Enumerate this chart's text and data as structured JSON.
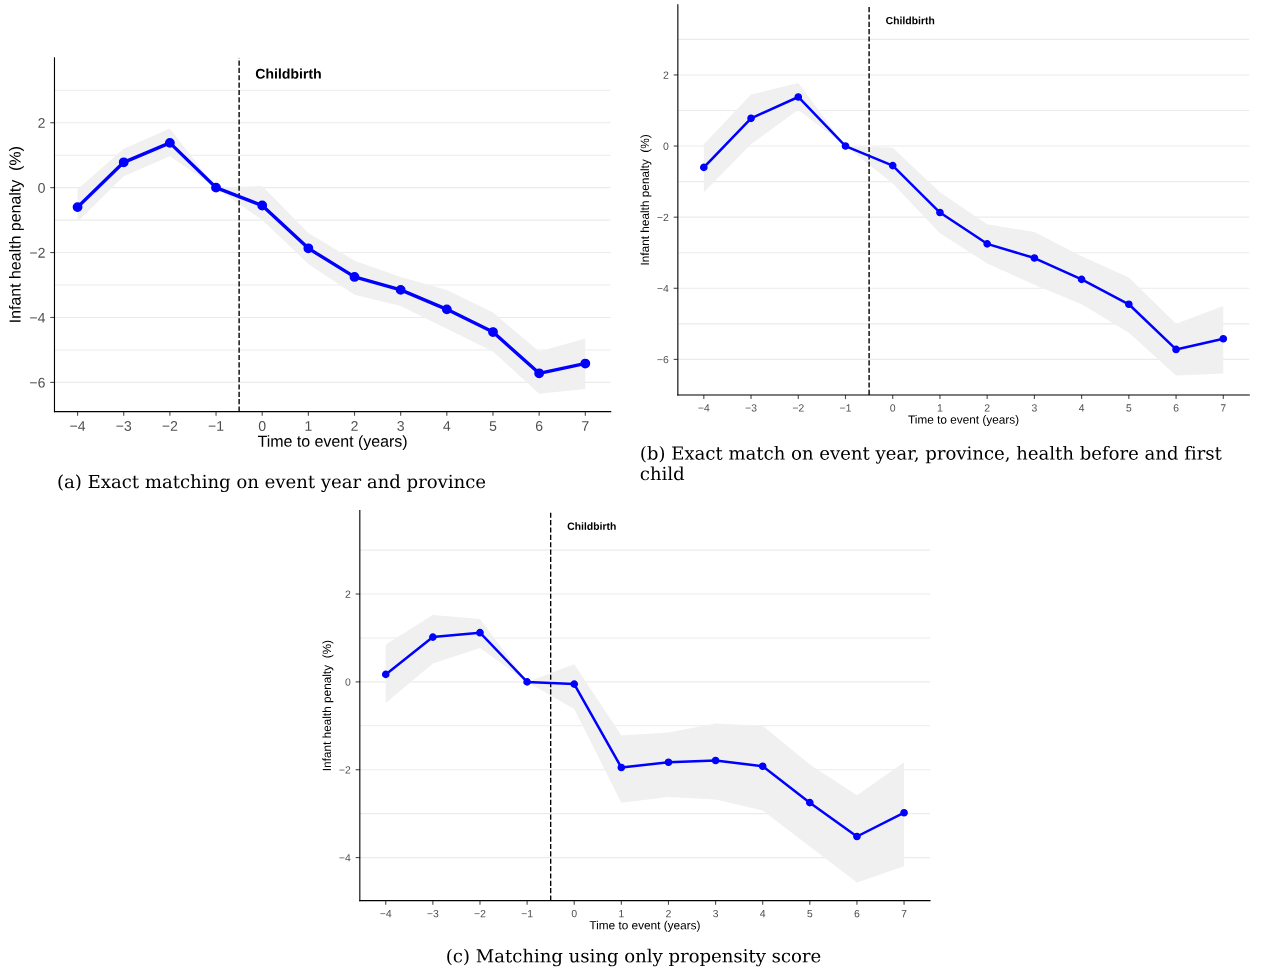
{
  "chart_data": [
    {
      "type": "line",
      "xlabel": "Time to event (years)",
      "ylabel": "Infant health penalty  (%)",
      "x": [
        -4,
        -3,
        -2,
        -1,
        0,
        1,
        2,
        3,
        4,
        5,
        6,
        7
      ],
      "series": [
        {
          "color": "#0000ff",
          "values": [
            -0.6,
            0.78,
            1.38,
            0,
            -0.55,
            -1.87,
            -2.75,
            -3.15,
            -3.75,
            -4.45,
            -5.72,
            -5.42
          ],
          "lower": [
            -1.05,
            0.35,
            0.97,
            0,
            -1.0,
            -2.35,
            -3.3,
            -3.65,
            -4.35,
            -5.05,
            -6.35,
            -6.2
          ],
          "upper": [
            -0.05,
            1.2,
            1.82,
            0,
            0.05,
            -1.4,
            -2.25,
            -2.75,
            -3.15,
            -3.85,
            -5.05,
            -4.65
          ]
        }
      ],
      "xlim": [
        -4.5,
        7.55
      ],
      "ylim": [
        -6.9,
        4.0
      ],
      "xticks": [
        {
          "value": -4,
          "label": "−4"
        },
        {
          "value": -3,
          "label": "−3"
        },
        {
          "value": -2,
          "label": "−2"
        },
        {
          "value": -1,
          "label": "−1"
        },
        0,
        1,
        2,
        3,
        4,
        5,
        6,
        7
      ],
      "yticks": [
        {
          "value": -6,
          "label": "−6"
        },
        {
          "value": -4,
          "label": "−4"
        },
        {
          "value": -2,
          "label": "−2"
        },
        0,
        2
      ],
      "ref_lines": [
        {
          "axis": "x",
          "value": -0.5,
          "label": "Childbirth",
          "line_style": "dashed",
          "color": "#000000"
        }
      ],
      "grid": "y",
      "marker": "circle",
      "line_style": "solid",
      "annotations": [
        "(a) Exact matching on event year and province"
      ]
    },
    {
      "type": "line",
      "xlabel": "Time to event (years)",
      "ylabel": "Infant health penalty  (%)",
      "x": [
        -4,
        -3,
        -2,
        -1,
        0,
        1,
        2,
        3,
        4,
        5,
        6,
        7
      ],
      "series": [
        {
          "color": "#0000ff",
          "values": [
            -0.6,
            0.78,
            1.38,
            0,
            -0.55,
            -1.87,
            -2.75,
            -3.15,
            -3.75,
            -4.45,
            -5.72,
            -5.42
          ],
          "lower": [
            -1.3,
            0.05,
            1.02,
            0,
            -1.05,
            -2.45,
            -3.3,
            -3.9,
            -4.45,
            -5.25,
            -6.45,
            -6.4
          ],
          "upper": [
            0.05,
            1.45,
            1.77,
            0,
            -0.05,
            -1.3,
            -2.2,
            -2.42,
            -3.1,
            -3.7,
            -5.0,
            -4.5
          ]
        }
      ],
      "xlim": [
        -4.55,
        7.55
      ],
      "ylim": [
        -7.0,
        3.97
      ],
      "xticks": [
        {
          "value": -4,
          "label": "−4"
        },
        {
          "value": -3,
          "label": "−3"
        },
        {
          "value": -2,
          "label": "−2"
        },
        {
          "value": -1,
          "label": "−1"
        },
        0,
        1,
        2,
        3,
        4,
        5,
        6,
        7
      ],
      "yticks": [
        {
          "value": -6,
          "label": "−6"
        },
        {
          "value": -4,
          "label": "−4"
        },
        {
          "value": -2,
          "label": "−2"
        },
        0,
        2
      ],
      "ref_lines": [
        {
          "axis": "x",
          "value": -0.5,
          "label": "Childbirth",
          "line_style": "dashed",
          "color": "#000000"
        }
      ],
      "grid": "y",
      "marker": "circle",
      "line_style": "solid",
      "annotations": [
        "(b) Exact match on event year, province, health before and first child"
      ]
    },
    {
      "type": "line",
      "xlabel": "Time to event (years)",
      "ylabel": "Infant health penalty  (%)",
      "x": [
        -4,
        -3,
        -2,
        -1,
        0,
        1,
        2,
        3,
        4,
        5,
        6,
        7
      ],
      "series": [
        {
          "color": "#0000ff",
          "values": [
            0.17,
            1.02,
            1.12,
            0,
            -0.05,
            -1.95,
            -1.83,
            -1.79,
            -1.92,
            -2.75,
            -3.52,
            -2.98
          ],
          "lower": [
            -0.48,
            0.42,
            0.77,
            0,
            -0.62,
            -2.75,
            -2.62,
            -2.68,
            -2.93,
            -3.75,
            -4.57,
            -4.2
          ],
          "upper": [
            0.85,
            1.52,
            1.43,
            0,
            0.4,
            -1.22,
            -1.15,
            -0.95,
            -1.0,
            -1.88,
            -2.58,
            -1.83
          ]
        }
      ],
      "xlim": [
        -4.55,
        7.55
      ],
      "ylim": [
        -4.98,
        3.9
      ],
      "xticks": [
        {
          "value": -4,
          "label": "−4"
        },
        {
          "value": -3,
          "label": "−3"
        },
        {
          "value": -2,
          "label": "−2"
        },
        {
          "value": -1,
          "label": "−1"
        },
        0,
        1,
        2,
        3,
        4,
        5,
        6,
        7
      ],
      "yticks": [
        {
          "value": -4,
          "label": "−4"
        },
        {
          "value": -2,
          "label": "−2"
        },
        0,
        2
      ],
      "ref_lines": [
        {
          "axis": "x",
          "value": -0.5,
          "label": "Childbirth",
          "line_style": "dashed",
          "color": "#000000"
        }
      ],
      "grid": "y",
      "marker": "circle",
      "line_style": "solid",
      "annotations": [
        "(c) Matching using only propensity score"
      ]
    }
  ]
}
